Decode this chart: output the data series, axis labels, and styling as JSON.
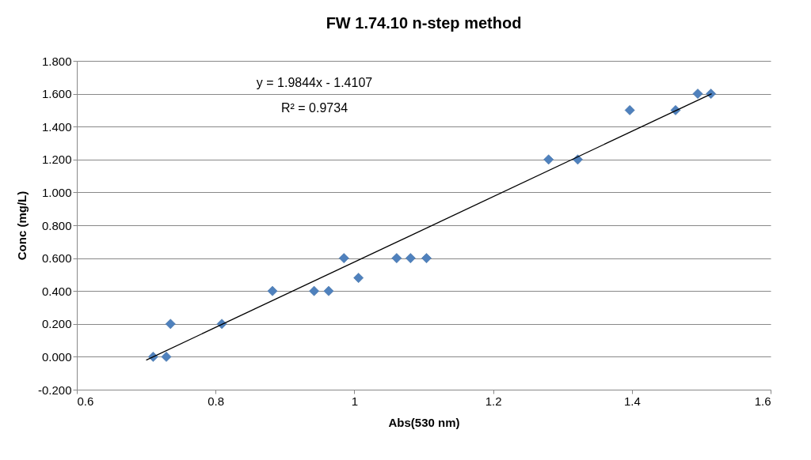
{
  "chart_data": {
    "type": "scatter",
    "title": "FW 1.74.10 n-step method",
    "xlabel": "Abs(530 nm)",
    "ylabel": "Conc (mg/L)",
    "series": [
      {
        "color": "#4f81bd",
        "marker": "diamond",
        "x": [
          0.71,
          0.729,
          0.735,
          0.809,
          0.882,
          0.942,
          0.963,
          0.985,
          1.006,
          1.061,
          1.081,
          1.104,
          1.28,
          1.322,
          1.397,
          1.463,
          1.495,
          1.514
        ],
        "values": [
          0,
          0,
          0.2,
          0.2,
          0.4,
          0.4,
          0.4,
          0.6,
          0.48,
          0.6,
          0.6,
          0.6,
          1.2,
          1.2,
          1.5,
          1.5,
          1.6,
          1.6
        ]
      },
      {
        "type": "line",
        "color": "#000000",
        "x": [
          0.7,
          1.515
        ],
        "values": [
          -0.02,
          1.6
        ]
      }
    ],
    "xlim": [
      0.6,
      1.6
    ],
    "xticks": [
      0.6,
      0.8,
      1,
      1.2,
      1.4,
      1.6
    ],
    "ylim": [
      -0.2,
      1.8
    ],
    "yticks": [
      {
        "value": -0.2,
        "label": "-0.200"
      },
      {
        "value": 0,
        "label": "0.000"
      },
      {
        "value": 0.2,
        "label": "0.200"
      },
      {
        "value": 0.4,
        "label": "0.400"
      },
      {
        "value": 0.6,
        "label": "0.600"
      },
      {
        "value": 0.8,
        "label": "0.800"
      },
      {
        "value": 1.0,
        "label": "1.000"
      },
      {
        "value": 1.2,
        "label": "1.200"
      },
      {
        "value": 1.4,
        "label": "1.400"
      },
      {
        "value": 1.6,
        "label": "1.600"
      },
      {
        "value": 1.8,
        "label": "1.800"
      }
    ],
    "annotations": [
      "y = 1.9844x - 1.4107",
      "R² = 0.9734"
    ],
    "grid": "y"
  }
}
